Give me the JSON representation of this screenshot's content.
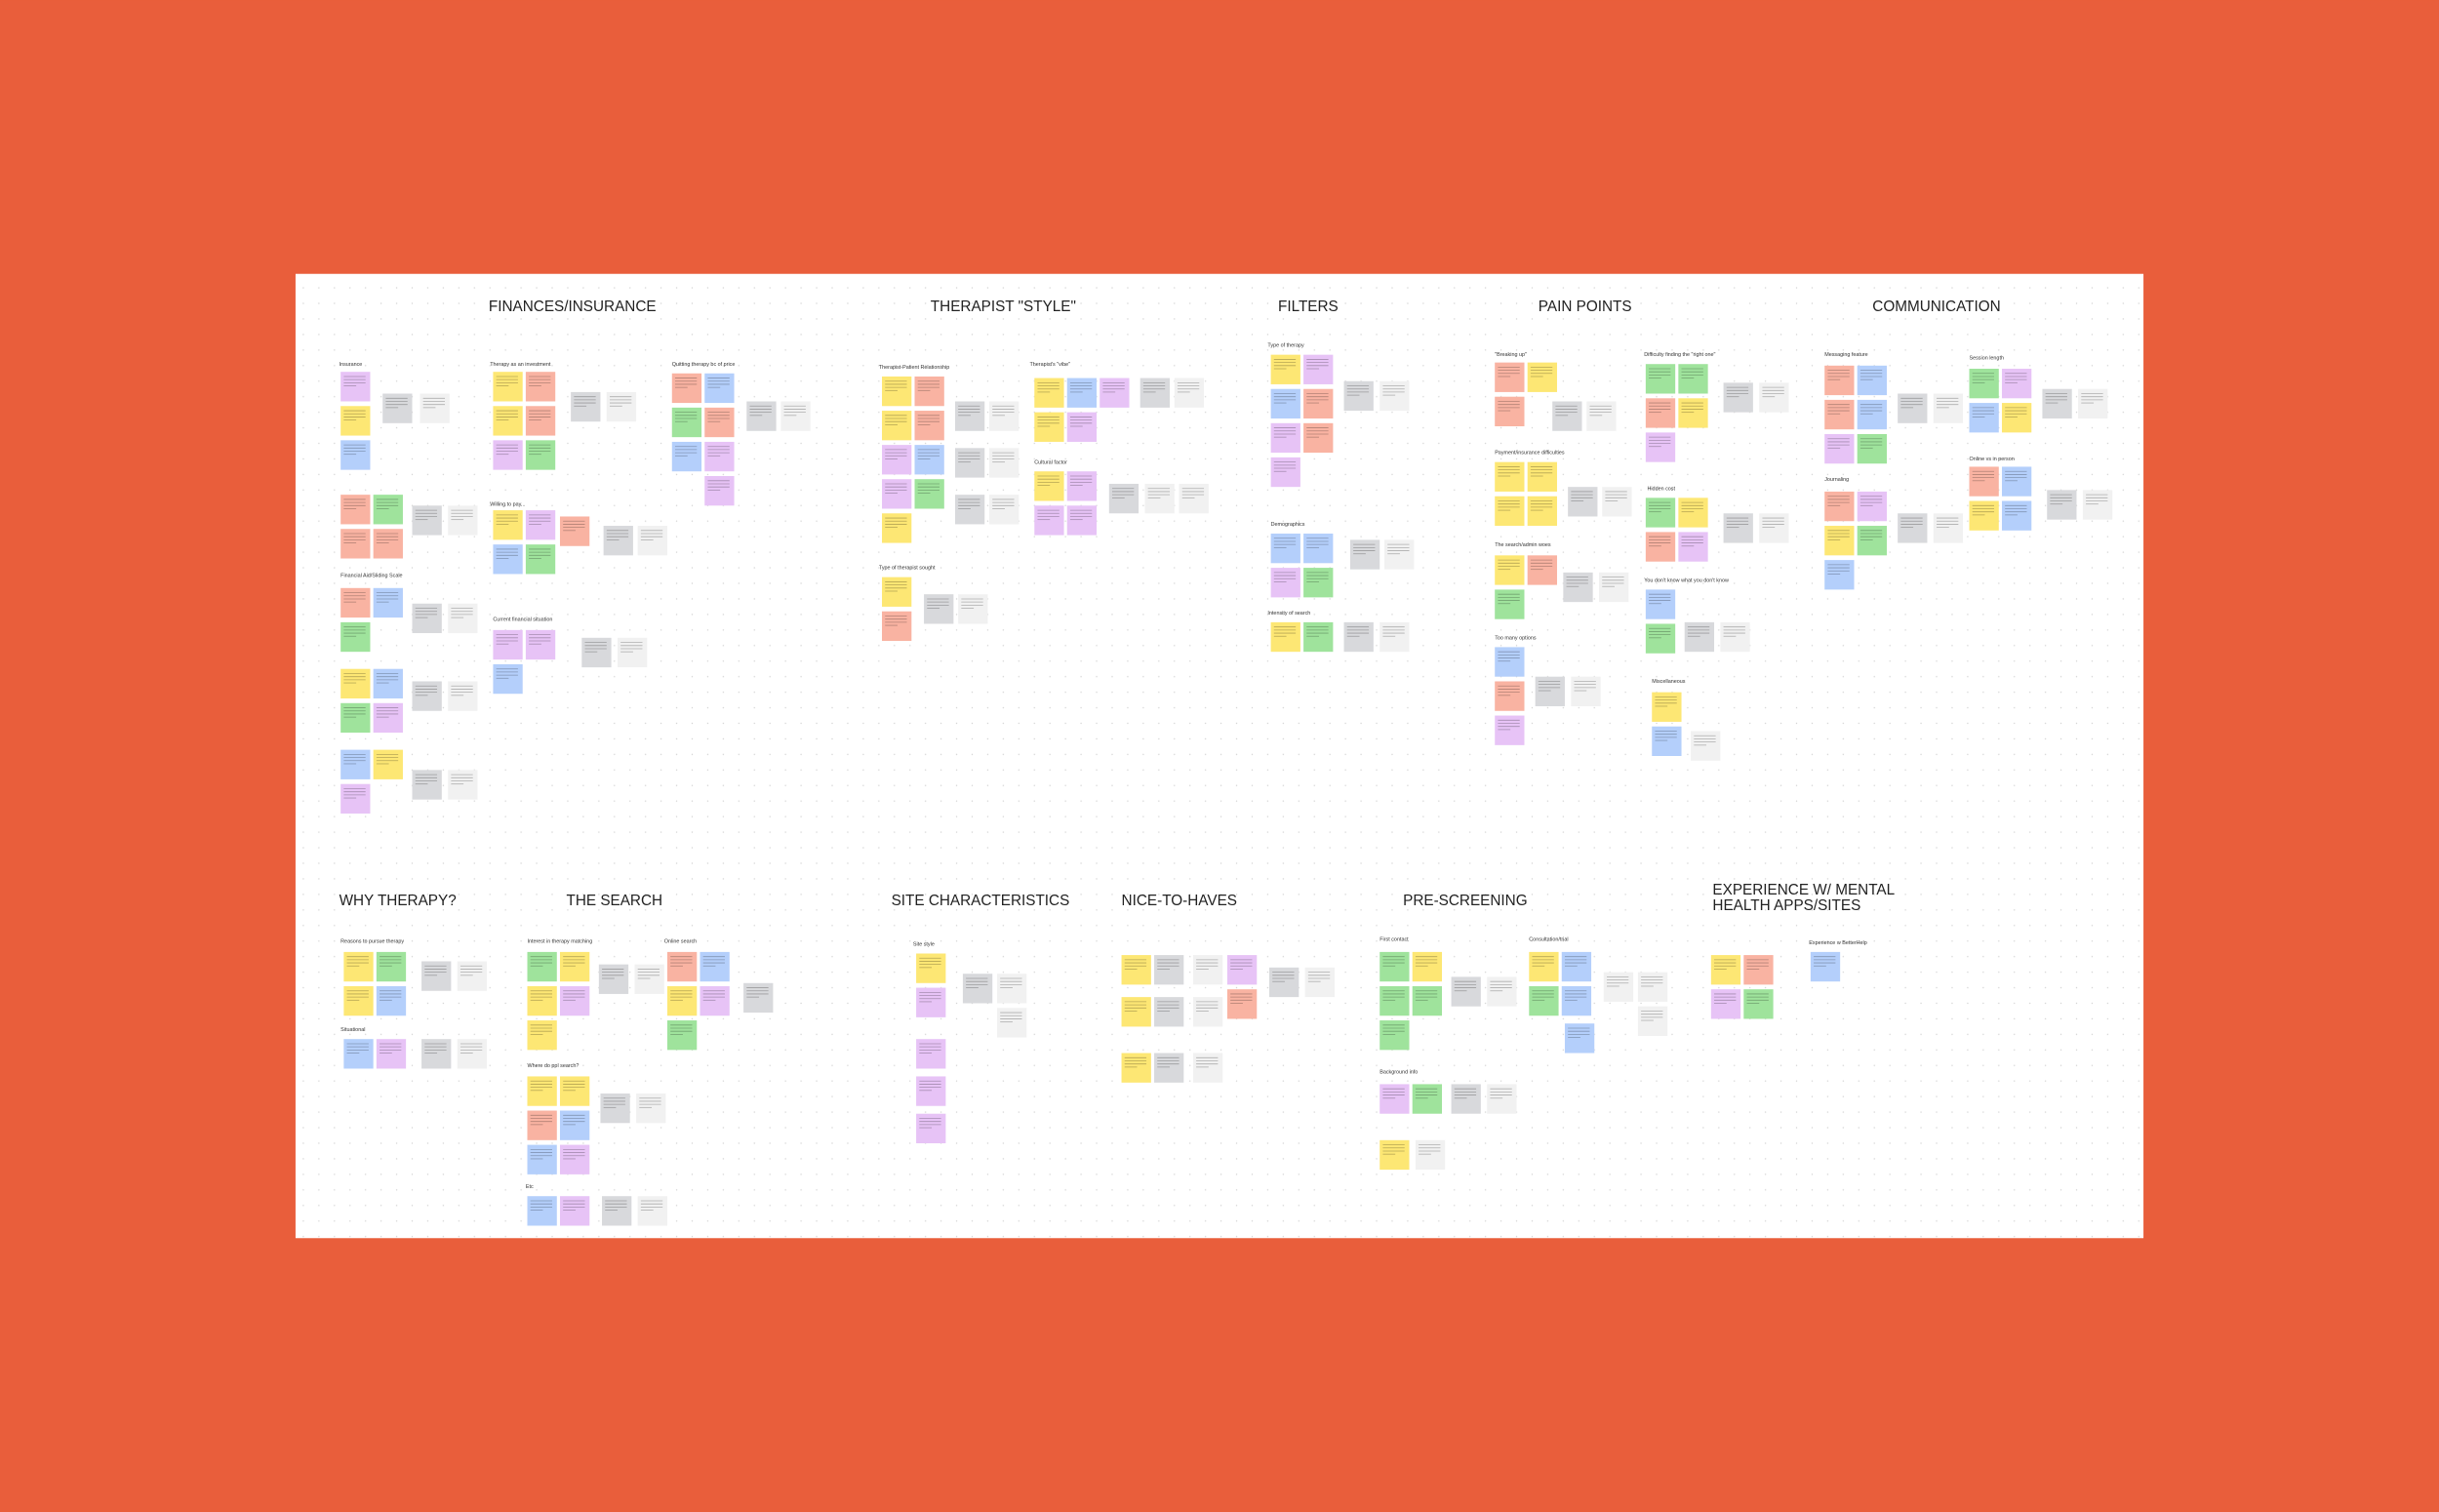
{
  "board": {
    "sections": [
      {
        "title": "FINANCES/INSURANCE",
        "groups": [
          "Insurance",
          "Therapy as an investment",
          "Quitting therapy bc of price",
          "Willing to pay...",
          "Financial Aid/Sliding Scale",
          "Current financial situation"
        ]
      },
      {
        "title": "THERAPIST \"STYLE\"",
        "groups": [
          "Therapist-Patient Relationship",
          "Therapist's \"vibe\"",
          "Cultural factor",
          "Type of therapist sought"
        ]
      },
      {
        "title": "FILTERS",
        "groups": [
          "Type of therapy",
          "Demographics",
          "Intensity of search"
        ]
      },
      {
        "title": "PAIN POINTS",
        "groups": [
          "\"Breaking up\"",
          "Difficulty finding the \"right one\"",
          "Payment/insurance difficulties",
          "The search/admin woes",
          "Hidden cost",
          "Too many options",
          "You don't know what you don't know",
          "Miscellaneous"
        ]
      },
      {
        "title": "COMMUNICATION",
        "groups": [
          "Messaging feature",
          "Session length",
          "Journaling",
          "Online vs in person"
        ]
      },
      {
        "title": "WHY THERAPY?",
        "groups": [
          "Reasons to pursue therapy",
          "Situational"
        ]
      },
      {
        "title": "THE SEARCH",
        "groups": [
          "Interest in therapy matching",
          "Online search",
          "Where do ppl search?",
          "Etc"
        ]
      },
      {
        "title": "SITE CHARACTERISTICS",
        "groups": [
          "Site style"
        ]
      },
      {
        "title": "NICE-TO-HAVES",
        "groups": []
      },
      {
        "title": "PRE-SCREENING",
        "groups": [
          "First contact",
          "Consultation/trial",
          "Background info"
        ]
      },
      {
        "title": "EXPERIENCE W/ MENTAL HEALTH APPS/SITES",
        "groups": [
          "Experience w BetterHelp"
        ]
      }
    ]
  }
}
